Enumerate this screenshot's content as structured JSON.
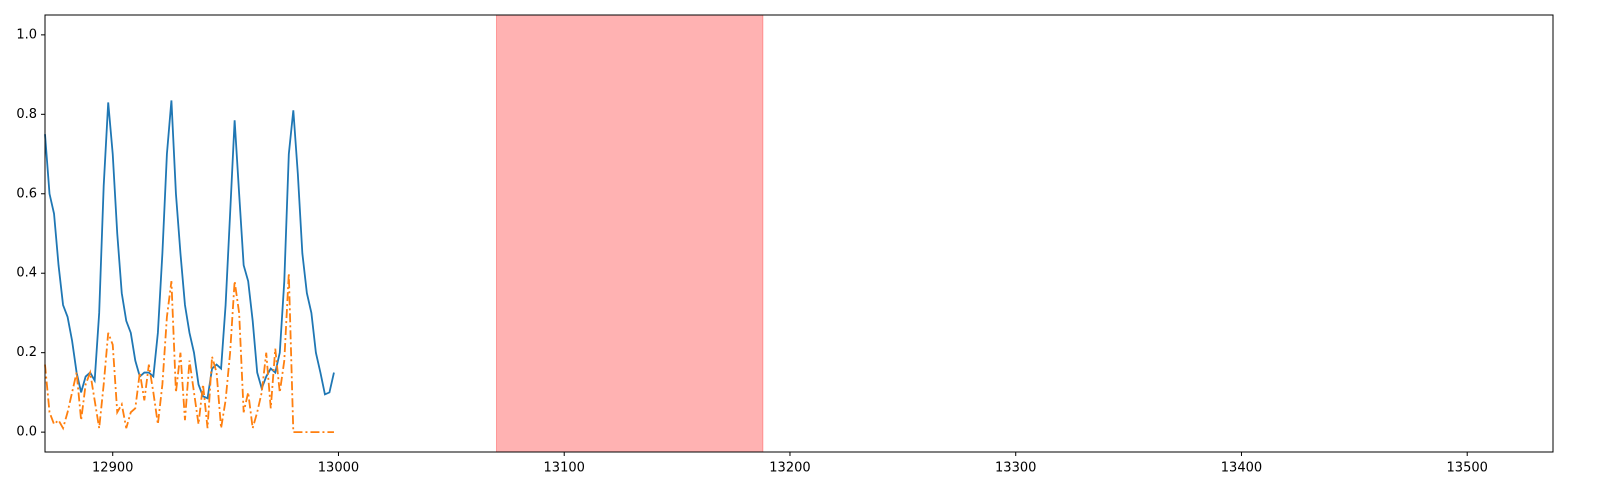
{
  "chart_data": {
    "type": "line",
    "x": [
      12870,
      12872,
      12874,
      12876,
      12878,
      12880,
      12882,
      12884,
      12886,
      12888,
      12890,
      12892,
      12894,
      12896,
      12898,
      12900,
      12902,
      12904,
      12906,
      12908,
      12910,
      12912,
      12914,
      12916,
      12918,
      12920,
      12922,
      12924,
      12926,
      12928,
      12930,
      12932,
      12934,
      12936,
      12938,
      12940,
      12942,
      12944,
      12946,
      12948,
      12950,
      12952,
      12954,
      12956,
      12958,
      12960,
      12962,
      12964,
      12966,
      12968,
      12970,
      12972,
      12974,
      12976,
      12978,
      12980,
      12982,
      12984,
      12986,
      12988,
      12990,
      12992,
      12994,
      12996,
      12998
    ],
    "series": [
      {
        "color": "#1f77b4",
        "linestyle": "solid",
        "values": [
          0.75,
          0.6,
          0.55,
          0.42,
          0.32,
          0.29,
          0.23,
          0.15,
          0.1,
          0.14,
          0.15,
          0.13,
          0.3,
          0.62,
          0.83,
          0.7,
          0.5,
          0.35,
          0.28,
          0.25,
          0.18,
          0.14,
          0.15,
          0.15,
          0.14,
          0.25,
          0.45,
          0.7,
          0.835,
          0.6,
          0.45,
          0.32,
          0.25,
          0.2,
          0.12,
          0.09,
          0.085,
          0.16,
          0.17,
          0.16,
          0.32,
          0.55,
          0.785,
          0.6,
          0.42,
          0.38,
          0.28,
          0.15,
          0.11,
          0.14,
          0.16,
          0.15,
          0.2,
          0.38,
          0.7,
          0.81,
          0.65,
          0.45,
          0.35,
          0.3,
          0.2,
          0.15,
          0.095,
          0.1,
          0.15
        ]
      },
      {
        "color": "#ff7f0e",
        "linestyle": "dashdot",
        "values": [
          0.17,
          0.05,
          0.02,
          0.03,
          0.01,
          0.05,
          0.1,
          0.15,
          0.03,
          0.12,
          0.15,
          0.08,
          0.01,
          0.12,
          0.25,
          0.22,
          0.05,
          0.07,
          0.01,
          0.05,
          0.06,
          0.15,
          0.08,
          0.17,
          0.1,
          0.02,
          0.12,
          0.29,
          0.38,
          0.1,
          0.2,
          0.03,
          0.18,
          0.1,
          0.02,
          0.12,
          0.01,
          0.19,
          0.15,
          0.01,
          0.08,
          0.2,
          0.38,
          0.3,
          0.05,
          0.1,
          0.01,
          0.05,
          0.1,
          0.2,
          0.06,
          0.21,
          0.1,
          0.18,
          0.4,
          0,
          0,
          0,
          0,
          0,
          0,
          0,
          0,
          0,
          0
        ]
      }
    ],
    "spans": [
      {
        "start": 13070,
        "end": 13188,
        "color": "#ff0000",
        "alpha": 0.3
      }
    ],
    "xlim": [
      12870,
      13538
    ],
    "xticks": [
      12900,
      13000,
      13100,
      13200,
      13300,
      13400,
      13500
    ],
    "ylim": [
      -0.05,
      1.05
    ],
    "yticks": [
      {
        "value": 0,
        "label": "0.0"
      },
      0.2,
      0.4,
      0.6,
      0.8,
      {
        "value": 1,
        "label": "1.0"
      }
    ],
    "grid": false
  }
}
